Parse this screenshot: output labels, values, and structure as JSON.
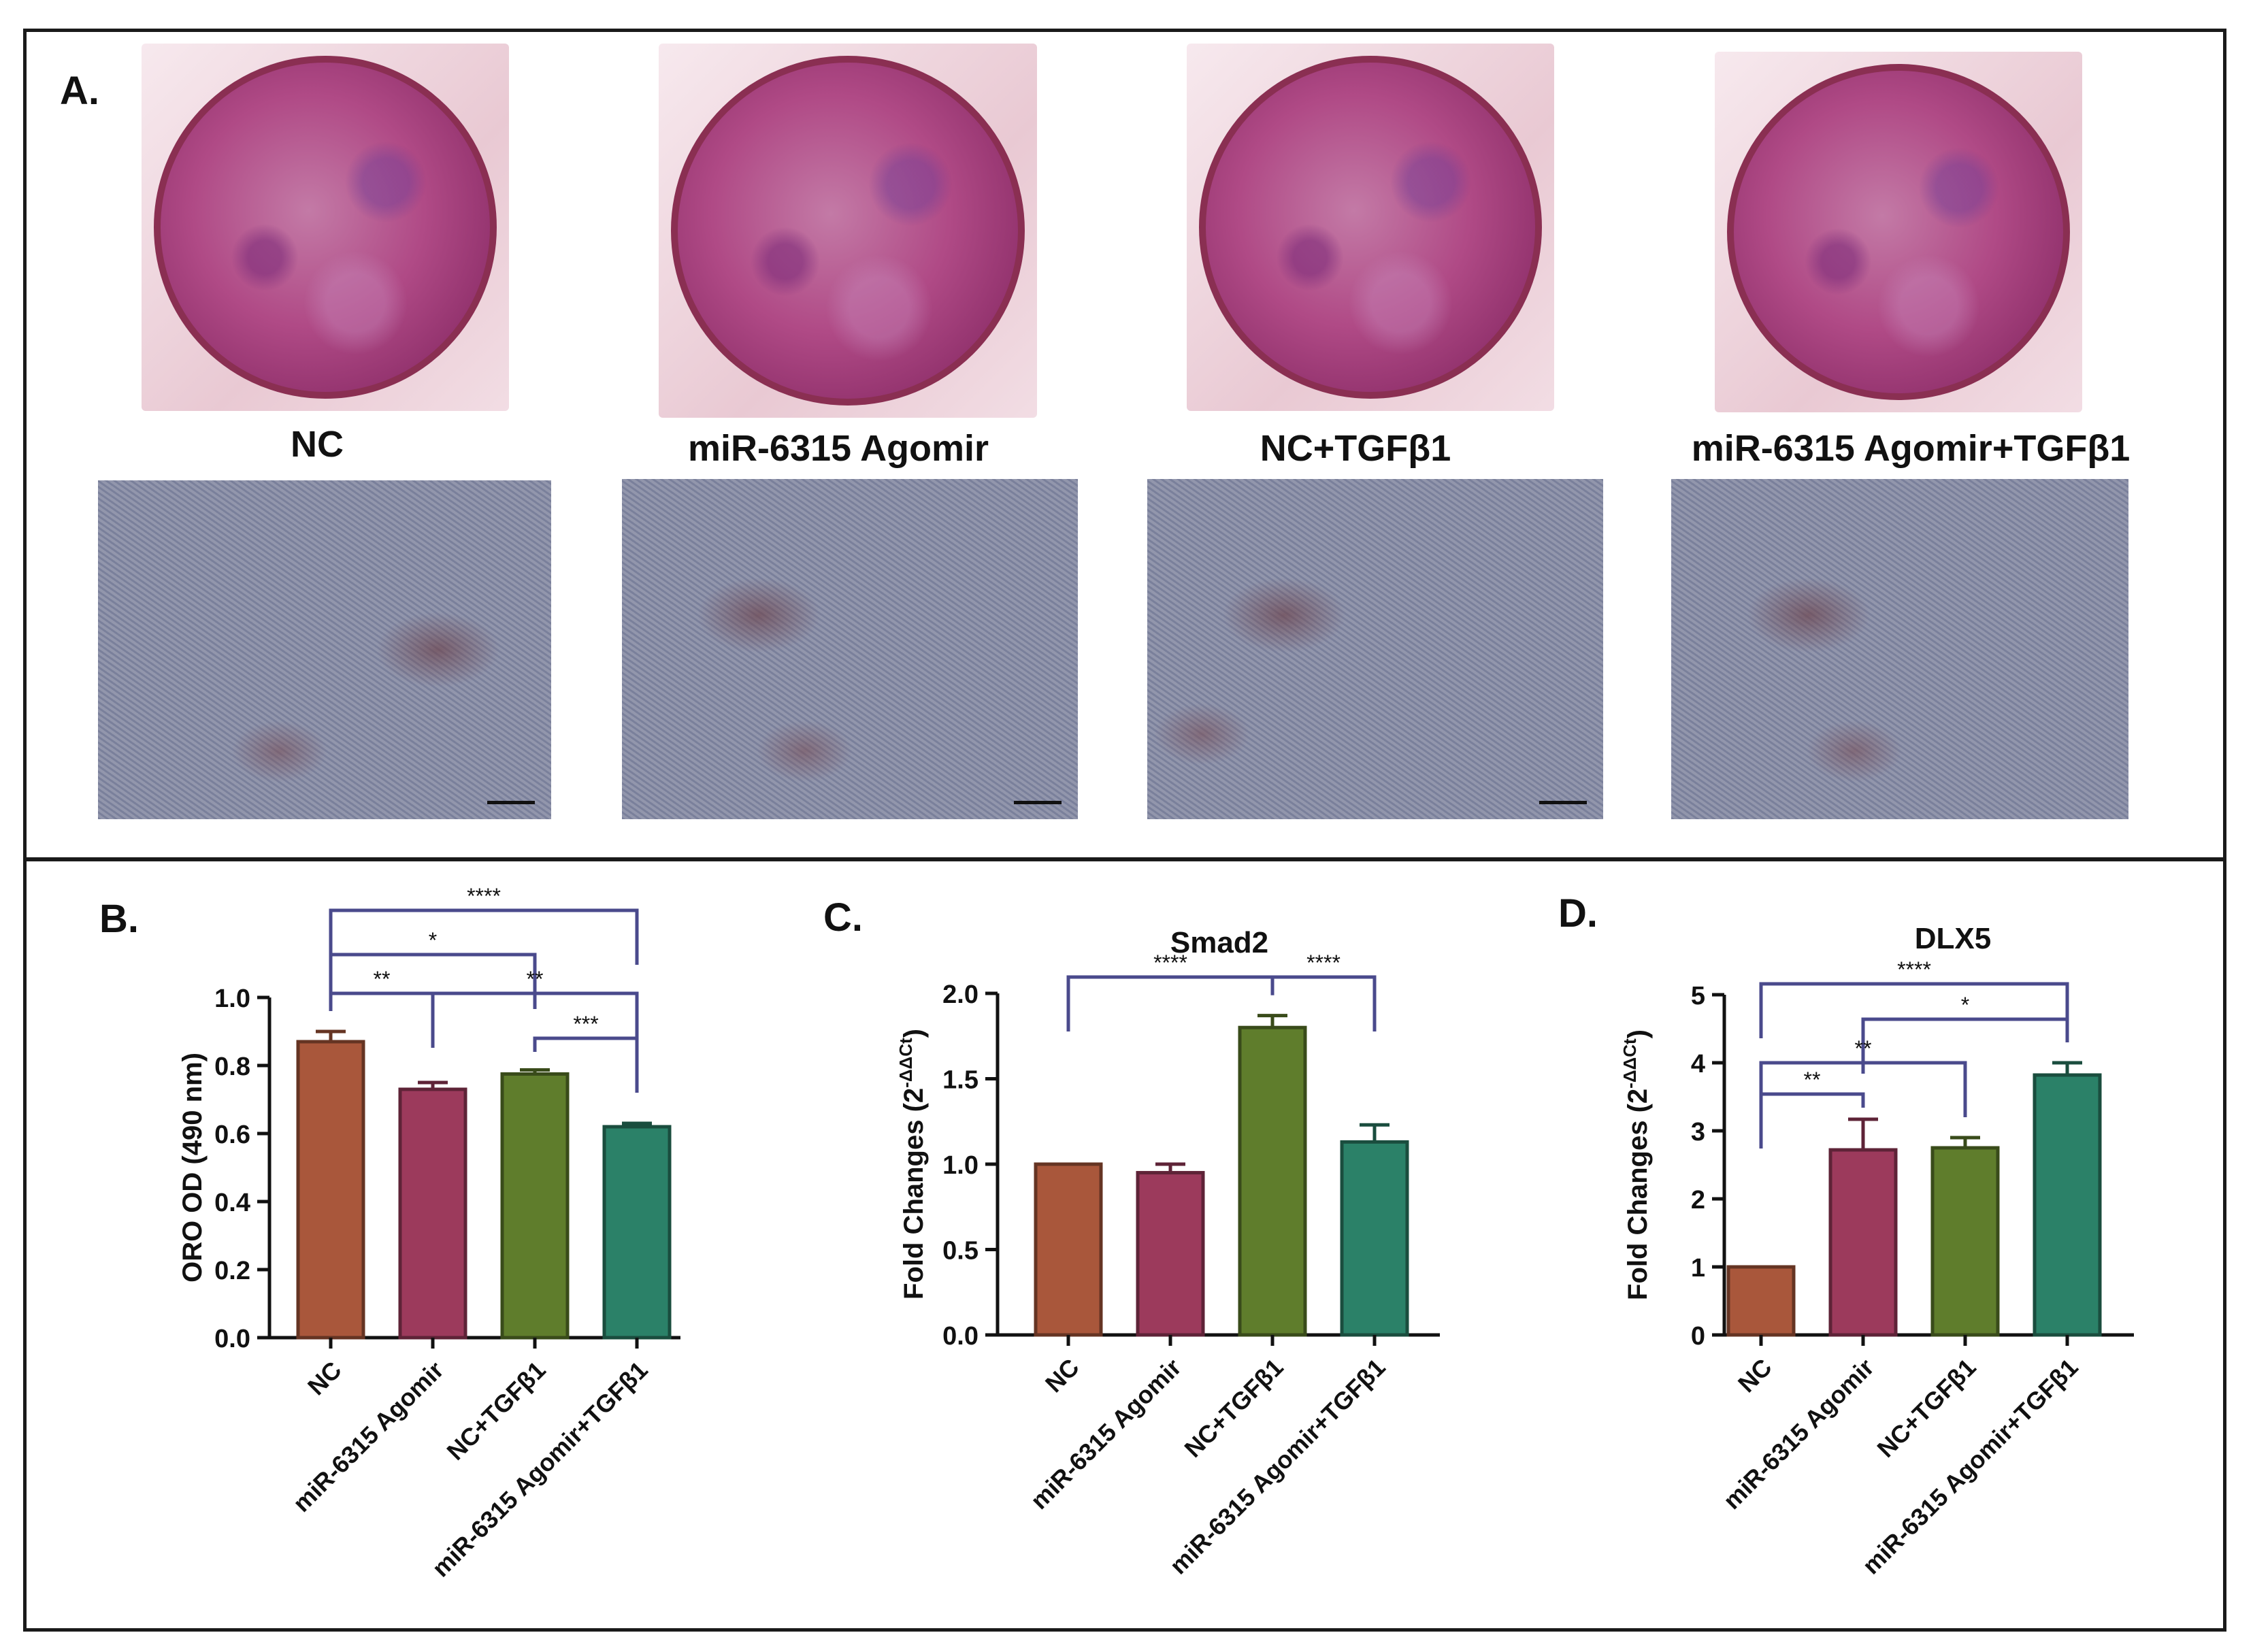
{
  "panel_a": {
    "letter": "A.",
    "groups": [
      "NC",
      "miR-6315 Agomir",
      "NC+TGFβ1",
      "miR-6315 Agomir+TGFβ1"
    ]
  },
  "colors": {
    "NC": "#a9573b",
    "miR-6315 Agomir": "#9c3a5c",
    "NC+TGFβ1": "#5f7d2c",
    "miR-6315 Agomir+TGFβ1": "#2b8168",
    "bracket": "#4a4a8c",
    "dish_stain": "#b04a86",
    "micro_bg": "#b9bccb"
  },
  "chart_data": [
    {
      "letter": "B.",
      "type": "bar",
      "title": "",
      "ylabel": "ORO OD (490 nm)",
      "ylim": [
        0,
        1.0
      ],
      "yticks": [
        "0.0",
        "0.2",
        "0.4",
        "0.6",
        "0.8",
        "1.0"
      ],
      "categories": [
        "NC",
        "miR-6315 Agomir",
        "NC+TGFβ1",
        "miR-6315 Agomir+TGFβ1"
      ],
      "values": [
        0.87,
        0.73,
        0.775,
        0.62
      ],
      "errors": [
        0.03,
        0.02,
        0.012,
        0.01
      ],
      "significance": [
        {
          "from": 0,
          "to": 3,
          "label": "****"
        },
        {
          "from": 0,
          "to": 2,
          "label": "*"
        },
        {
          "from": 0,
          "to": 1,
          "label": "**"
        },
        {
          "from": 1,
          "to": 3,
          "label": "**"
        },
        {
          "from": 2,
          "to": 3,
          "label": "***"
        }
      ]
    },
    {
      "letter": "C.",
      "type": "bar",
      "title": "Smad2",
      "ylabel": "Fold Changes (2",
      "ylabel_sup": "-ΔΔCt",
      "ylabel_end": ")",
      "ylim": [
        0,
        2.0
      ],
      "yticks": [
        "0.0",
        "0.5",
        "1.0",
        "1.5",
        "2.0"
      ],
      "categories": [
        "NC",
        "miR-6315 Agomir",
        "NC+TGFβ1",
        "miR-6315 Agomir+TGFβ1"
      ],
      "values": [
        1.0,
        0.95,
        1.8,
        1.13
      ],
      "errors": [
        0,
        0.05,
        0.07,
        0.1
      ],
      "significance": [
        {
          "from": 0,
          "to": 2,
          "label": "****"
        },
        {
          "from": 2,
          "to": 3,
          "label": "****"
        }
      ]
    },
    {
      "letter": "D.",
      "type": "bar",
      "title": "DLX5",
      "ylabel": "Fold Changes (2",
      "ylabel_sup": "-ΔΔCt",
      "ylabel_end": ")",
      "ylim": [
        0,
        5
      ],
      "yticks": [
        "0",
        "1",
        "2",
        "3",
        "4",
        "5"
      ],
      "categories": [
        "NC",
        "miR-6315 Agomir",
        "NC+TGFβ1",
        "miR-6315 Agomir+TGFβ1"
      ],
      "values": [
        1.0,
        2.72,
        2.75,
        3.82
      ],
      "errors": [
        0,
        0.45,
        0.15,
        0.18
      ],
      "significance": [
        {
          "from": 0,
          "to": 3,
          "label": "****"
        },
        {
          "from": 1,
          "to": 3,
          "label": "*"
        },
        {
          "from": 0,
          "to": 2,
          "label": "**"
        },
        {
          "from": 0,
          "to": 1,
          "label": "**"
        }
      ]
    }
  ]
}
